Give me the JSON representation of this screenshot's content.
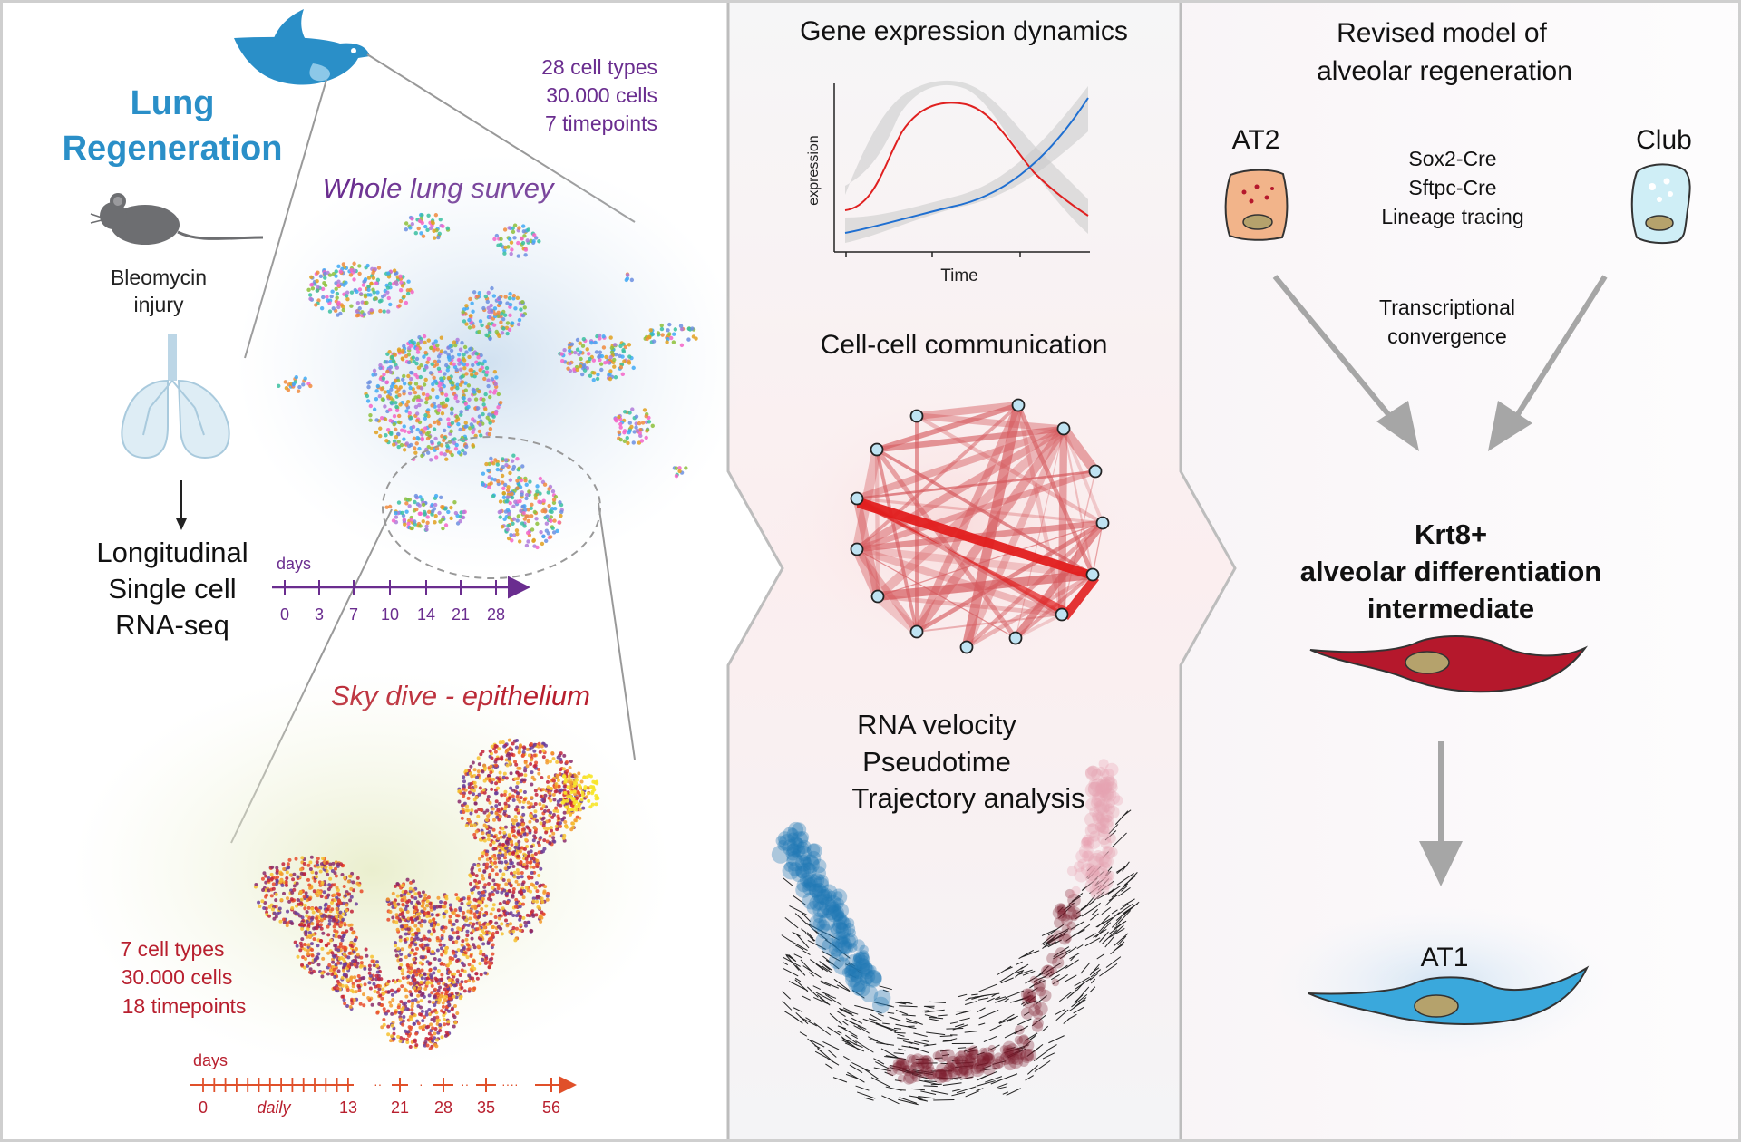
{
  "colors": {
    "accent_blue": "#2a8fc8",
    "purple": "#6a2d8f",
    "crimson": "#b81f2e",
    "orange_red": "#e0502a",
    "gray_arrow": "#a6a6a6",
    "cell_red": "#b5182c",
    "cell_blue": "#3aa8dc",
    "at2_fill": "#f2b48a",
    "club_fill": "#cfeef6",
    "nucleus": "#b5a26c"
  },
  "left": {
    "title_line1": "Lung",
    "title_line2": "Regeneration",
    "injury_line1": "Bleomycin",
    "injury_line2": "injury",
    "method_line1": "Longitudinal",
    "method_line2": "Single cell",
    "method_line3": "RNA-seq",
    "survey": {
      "stat1": "28 cell types",
      "stat2": "30.000 cells",
      "stat3": "7 timepoints",
      "title": "Whole lung survey",
      "timeline_label": "days",
      "ticks": [
        "0",
        "3",
        "7",
        "10",
        "14",
        "21",
        "28"
      ]
    },
    "skydive": {
      "title": "Sky dive - epithelium",
      "stat1": "7 cell types",
      "stat2": "30.000 cells",
      "stat3": "18 timepoints",
      "timeline_label": "days",
      "tick0": "0",
      "tick_daily": "daily",
      "tick13": "13",
      "tick21": "21",
      "tick28": "28",
      "tick35": "35",
      "tick56": "56"
    },
    "icons": [
      "bird-icon",
      "mouse-icon",
      "lung-icon"
    ]
  },
  "middle": {
    "gene_title": "Gene expression dynamics",
    "gene_ylabel": "expression",
    "gene_xlabel": "Time",
    "comm_title": "Cell-cell communication",
    "velocity_line1": "RNA velocity",
    "velocity_line2": "Pseudotime",
    "velocity_line3": "Trajectory analysis"
  },
  "right": {
    "title_line1": "Revised model of",
    "title_line2": "alveolar regeneration",
    "at2_label": "AT2",
    "club_label": "Club",
    "method1": "Sox2-Cre",
    "method2": "Sftpc-Cre",
    "method3": "Lineage tracing",
    "converge1": "Transcriptional",
    "converge2": "convergence",
    "krt8_line1": "Krt8+",
    "krt8_line2": "alveolar differentiation",
    "krt8_line3": "intermediate",
    "at1_label": "AT1"
  }
}
